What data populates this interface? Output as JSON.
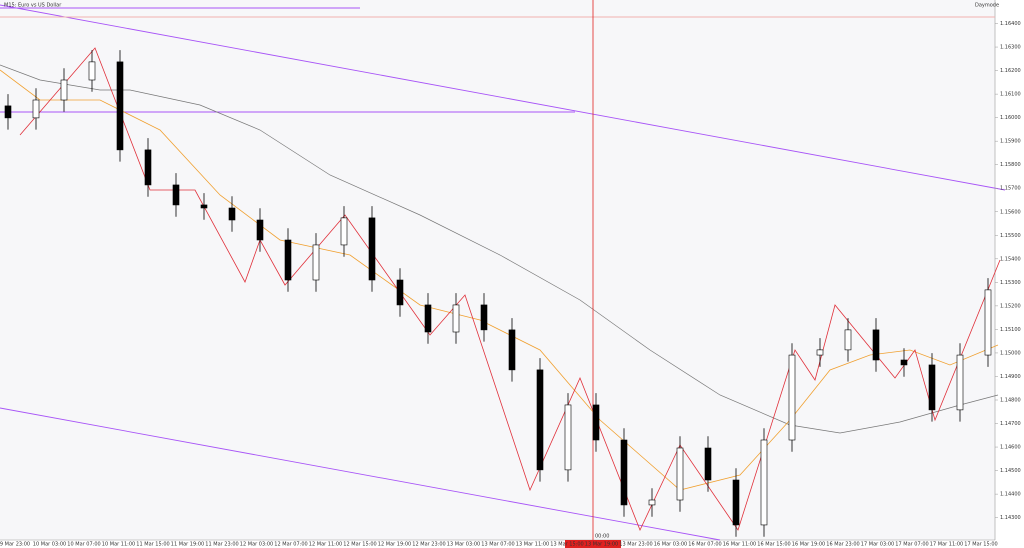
{
  "chart_data": {
    "type": "candlestick",
    "title": "M15: Euro vs US Dollar",
    "badge": "Daymode",
    "cursor_label": "00:00",
    "open": [
      1.1605,
      1.15999,
      1.16075,
      1.1616,
      1.16237,
      1.15863,
      1.15714,
      1.15629,
      1.15616,
      1.15565,
      1.1548,
      1.1531,
      1.15459,
      1.15574,
      1.1531,
      1.15204,
      1.15089,
      1.15204,
      1.15098,
      1.14928,
      1.14503,
      1.14779,
      1.1463,
      1.14354,
      1.14375,
      1.14596,
      1.1446,
      1.14269,
      1.1463,
      1.14991,
      1.15013,
      1.15098,
      1.1497,
      1.14949,
      1.14758,
      1.14991
    ],
    "high": [
      1.161,
      1.16125,
      1.1621,
      1.16287,
      1.16287,
      1.15913,
      1.15764,
      1.15679,
      1.15666,
      1.15615,
      1.1553,
      1.15509,
      1.15624,
      1.15624,
      1.1536,
      1.15254,
      1.15254,
      1.15254,
      1.15148,
      1.14978,
      1.14829,
      1.14829,
      1.1468,
      1.14425,
      1.14646,
      1.14646,
      1.1451,
      1.1468,
      1.15041,
      1.15063,
      1.15148,
      1.15148,
      1.1502,
      1.14999,
      1.15041,
      1.15318
    ],
    "low": [
      1.15949,
      1.15949,
      1.16025,
      1.1611,
      1.15813,
      1.15664,
      1.15579,
      1.15566,
      1.15515,
      1.1543,
      1.1526,
      1.1526,
      1.15409,
      1.1526,
      1.15154,
      1.15039,
      1.15039,
      1.15048,
      1.14878,
      1.14453,
      1.14453,
      1.1458,
      1.14304,
      1.14304,
      1.14325,
      1.1441,
      1.14219,
      1.14219,
      1.1458,
      1.14941,
      1.14963,
      1.1492,
      1.14899,
      1.14708,
      1.14708,
      1.14941
    ],
    "close": [
      1.15999,
      1.16075,
      1.1616,
      1.16237,
      1.15863,
      1.15714,
      1.15629,
      1.15616,
      1.15565,
      1.1548,
      1.1531,
      1.15459,
      1.15574,
      1.1531,
      1.15204,
      1.15089,
      1.15204,
      1.15098,
      1.14928,
      1.14503,
      1.14779,
      1.1463,
      1.14354,
      1.14375,
      1.14596,
      1.1446,
      1.14269,
      1.1463,
      1.14991,
      1.15013,
      1.15098,
      1.1497,
      1.14949,
      1.14758,
      1.14991,
      1.15268
    ],
    "ylim": [
      1.14205,
      1.165
    ],
    "yticks": [
      {
        "value": 1.143,
        "label": "1.14300"
      },
      {
        "value": 1.144,
        "label": "1.14400"
      },
      {
        "value": 1.145,
        "label": "1.14500"
      },
      {
        "value": 1.146,
        "label": "1.14600"
      },
      {
        "value": 1.147,
        "label": "1.14700"
      },
      {
        "value": 1.148,
        "label": "1.14800"
      },
      {
        "value": 1.149,
        "label": "1.14900"
      },
      {
        "value": 1.15,
        "label": "1.15000"
      },
      {
        "value": 1.151,
        "label": "1.15100"
      },
      {
        "value": 1.152,
        "label": "1.15200"
      },
      {
        "value": 1.153,
        "label": "1.15300"
      },
      {
        "value": 1.154,
        "label": "1.15400"
      },
      {
        "value": 1.155,
        "label": "1.15500"
      },
      {
        "value": 1.156,
        "label": "1.15600"
      },
      {
        "value": 1.157,
        "label": "1.15700"
      },
      {
        "value": 1.158,
        "label": "1.15800"
      },
      {
        "value": 1.159,
        "label": "1.15900"
      },
      {
        "value": 1.16,
        "label": "1.16000"
      },
      {
        "value": 1.161,
        "label": "1.16100"
      },
      {
        "value": 1.162,
        "label": "1.16200"
      },
      {
        "value": 1.163,
        "label": "1.16300"
      },
      {
        "value": 1.164,
        "label": "1.16400"
      }
    ],
    "time_labels": [
      "9 Mar 23:00",
      "10 Mar 03:00",
      "10 Mar 07:00",
      "10 Mar 11:00",
      "11 Mar 15:00",
      "11 Mar 19:00",
      "11 Mar 23:00",
      "12 Mar 03:00",
      "12 Mar 07:00",
      "12 Mar 11:00",
      "12 Mar 15:00",
      "12 Mar 19:00",
      "12 Mar 23:00",
      "13 Mar 03:00",
      "13 Mar 07:00",
      "13 Mar 11:00",
      "13 Mar 15:00",
      "13 Mar 19:00",
      "13 Mar 23:00",
      "16 Mar 03:00",
      "16 Mar 07:00",
      "16 Mar 11:00",
      "16 Mar 15:00",
      "16 Mar 19:00",
      "16 Mar 23:00",
      "17 Mar 03:00",
      "17 Mar 07:00",
      "17 Mar 11:00",
      "17 Mar 15:00"
    ],
    "up_color": "#ffffff",
    "down_color": "#000000"
  }
}
